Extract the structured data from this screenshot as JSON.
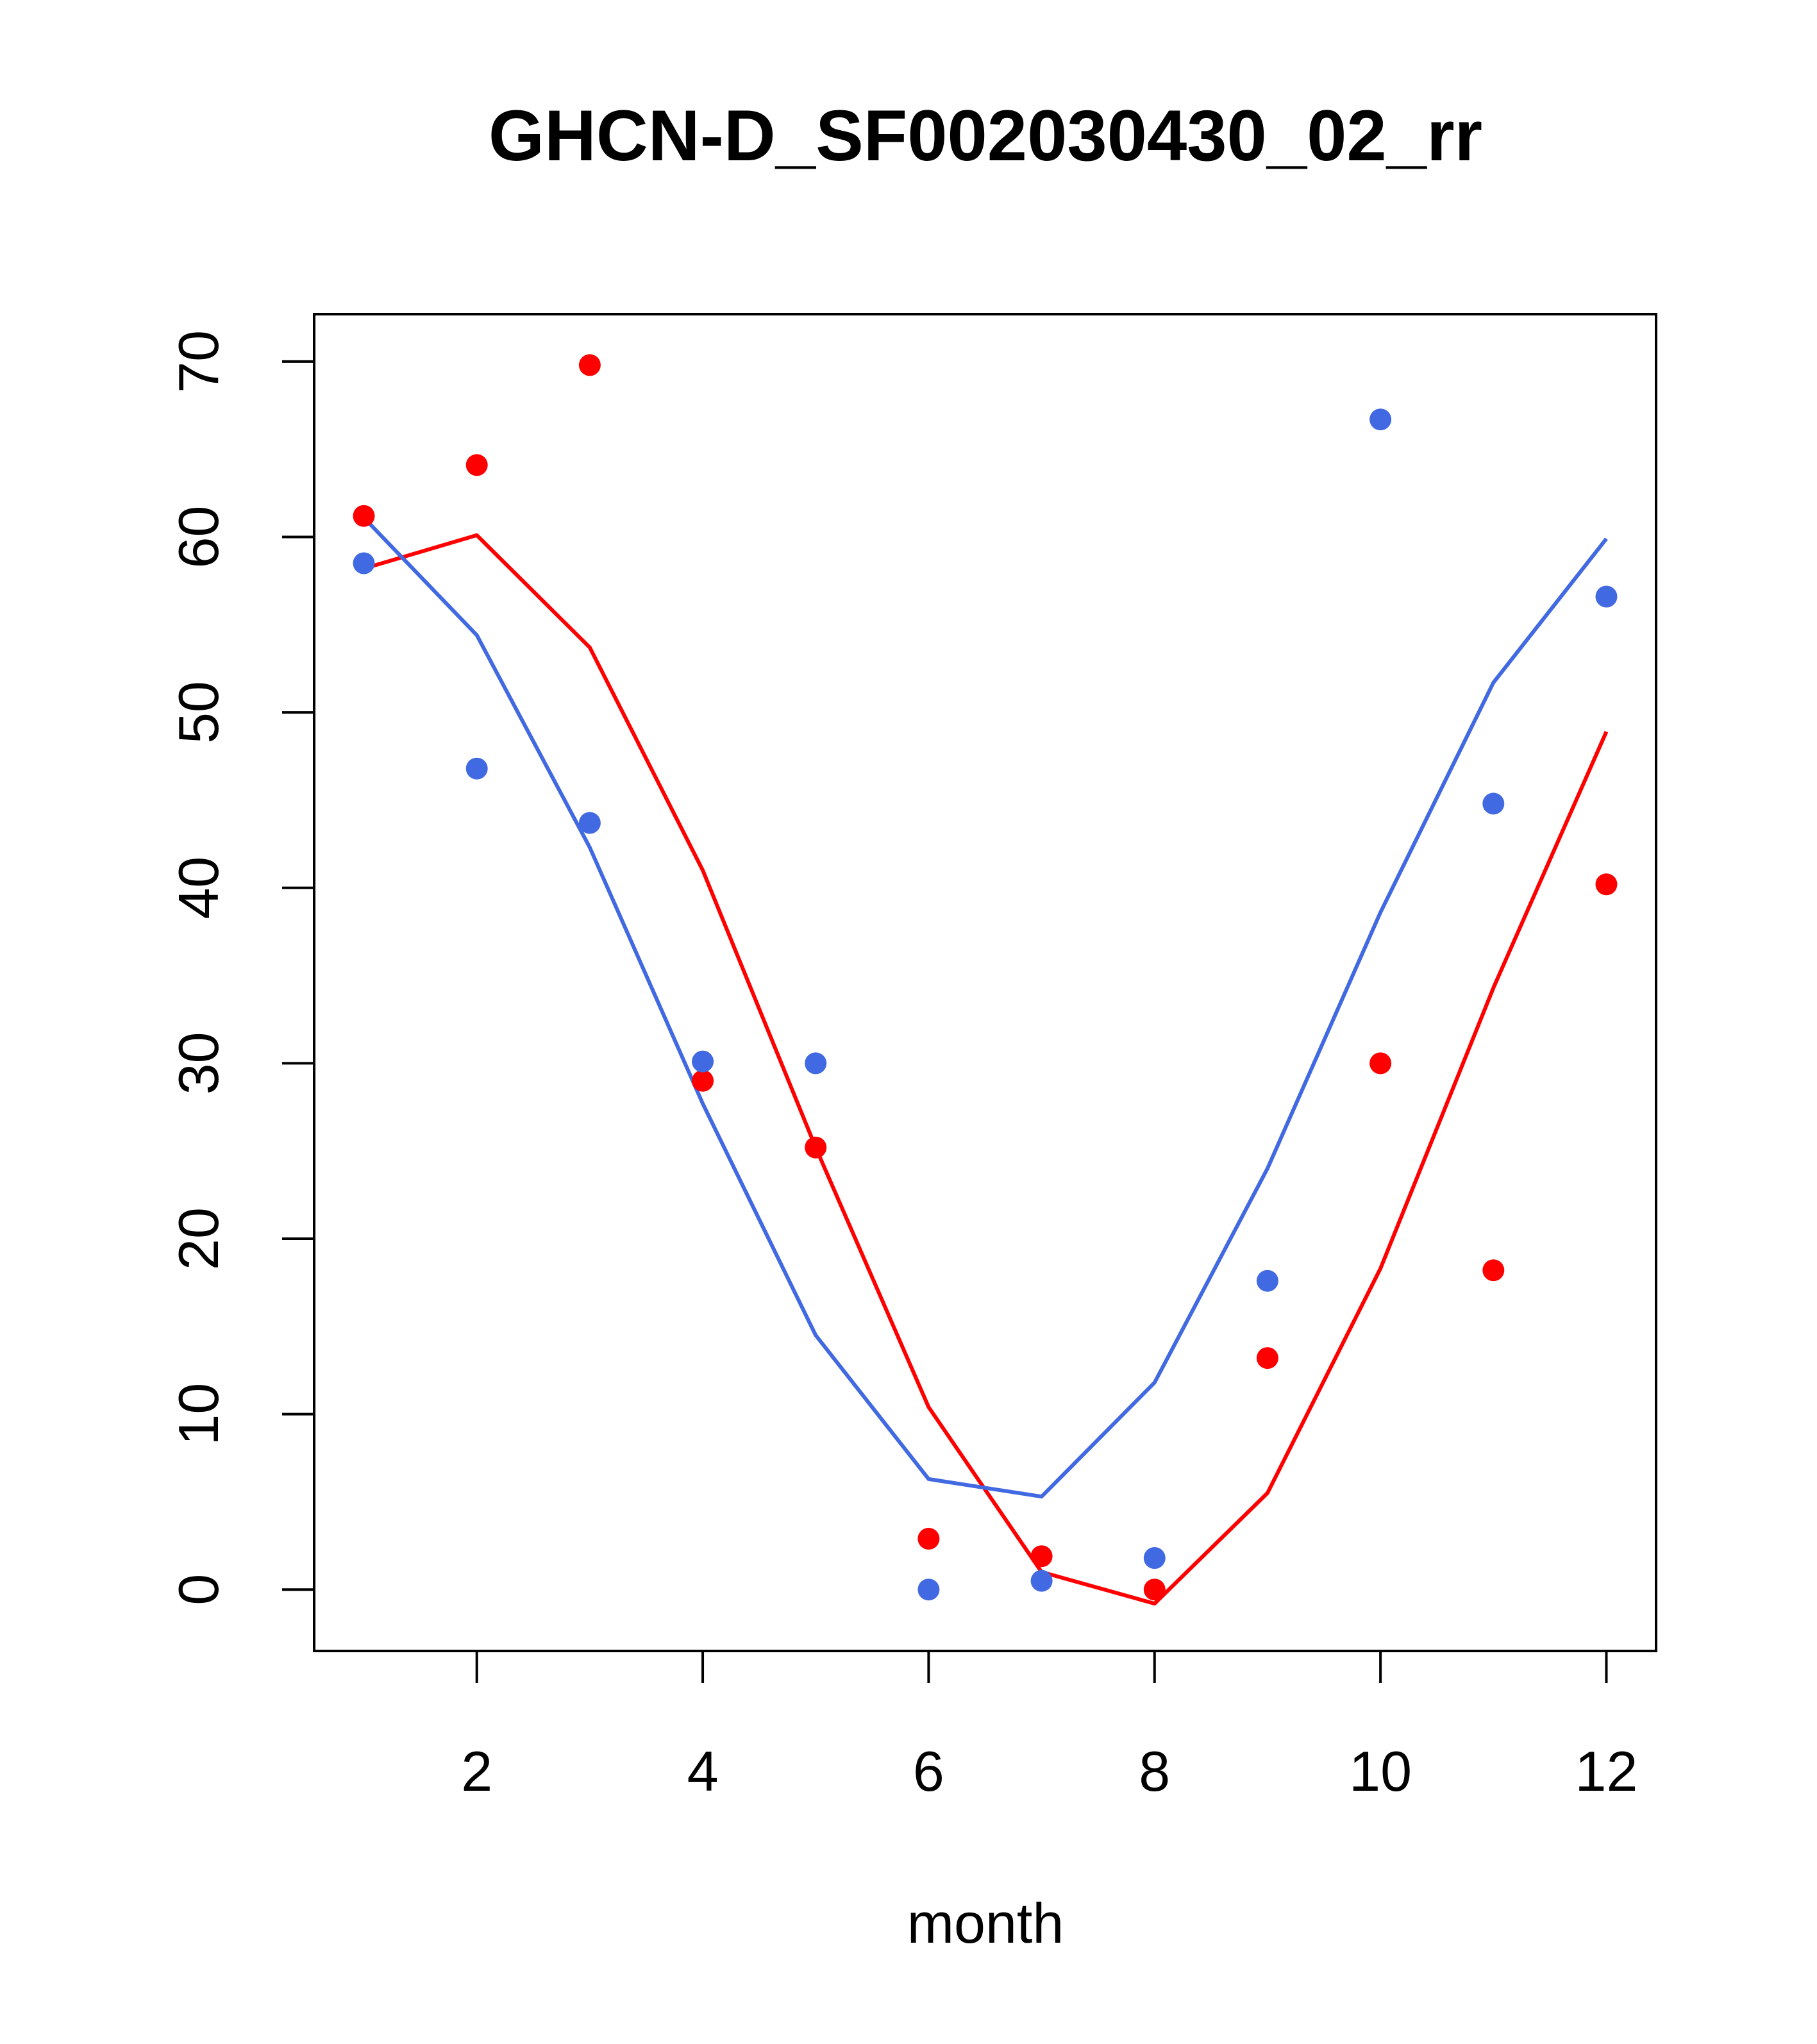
{
  "chart_data": {
    "type": "scatter",
    "title": "GHCN-D_SF002030430_02_rr",
    "xlabel": "month",
    "ylabel": "",
    "xlim": [
      0.56,
      12.44
    ],
    "ylim": [
      -3.5,
      72.7
    ],
    "xticks": [
      2,
      4,
      6,
      8,
      10,
      12
    ],
    "yticks": [
      0,
      10,
      20,
      30,
      40,
      50,
      60,
      70
    ],
    "series": [
      {
        "name": "red points",
        "kind": "points",
        "color": "#ff0000",
        "x": [
          1,
          2,
          3,
          4,
          5,
          6,
          7,
          8,
          9,
          10,
          11,
          12
        ],
        "y": [
          61.2,
          64.1,
          69.8,
          29.0,
          25.2,
          2.9,
          1.9,
          0.0,
          13.2,
          30.0,
          18.2,
          40.2
        ]
      },
      {
        "name": "blue points",
        "kind": "points",
        "color": "#4169e1",
        "x": [
          1,
          2,
          3,
          4,
          5,
          6,
          7,
          8,
          9,
          10,
          11,
          12
        ],
        "y": [
          58.5,
          46.8,
          43.7,
          30.1,
          30.0,
          0.0,
          0.5,
          1.8,
          17.6,
          66.7,
          44.8,
          56.6
        ]
      },
      {
        "name": "red line",
        "kind": "line",
        "color": "#ff0000",
        "x": [
          1,
          2,
          3,
          4,
          5,
          6,
          7,
          8,
          9,
          10,
          11,
          12
        ],
        "y": [
          58.2,
          60.1,
          53.7,
          41.0,
          25.2,
          10.4,
          1.0,
          -0.8,
          5.5,
          18.3,
          34.3,
          48.9
        ]
      },
      {
        "name": "blue line",
        "kind": "line",
        "color": "#4169e1",
        "x": [
          1,
          2,
          3,
          4,
          5,
          6,
          7,
          8,
          9,
          10,
          11,
          12
        ],
        "y": [
          61.1,
          54.4,
          42.3,
          27.7,
          14.5,
          6.3,
          5.3,
          11.8,
          24.0,
          38.6,
          51.7,
          59.9
        ]
      }
    ]
  }
}
